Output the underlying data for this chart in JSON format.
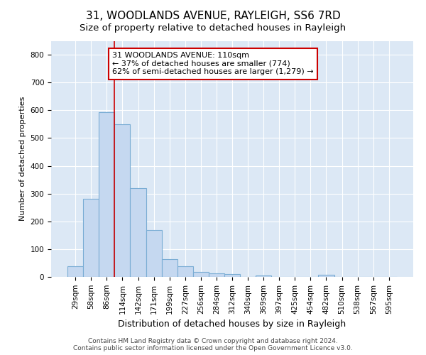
{
  "title": "31, WOODLANDS AVENUE, RAYLEIGH, SS6 7RD",
  "subtitle": "Size of property relative to detached houses in Rayleigh",
  "xlabel": "Distribution of detached houses by size in Rayleigh",
  "ylabel": "Number of detached properties",
  "categories": [
    "29sqm",
    "58sqm",
    "86sqm",
    "114sqm",
    "142sqm",
    "171sqm",
    "199sqm",
    "227sqm",
    "256sqm",
    "284sqm",
    "312sqm",
    "340sqm",
    "369sqm",
    "397sqm",
    "425sqm",
    "454sqm",
    "482sqm",
    "510sqm",
    "538sqm",
    "567sqm",
    "595sqm"
  ],
  "values": [
    38,
    280,
    593,
    550,
    320,
    170,
    65,
    38,
    18,
    12,
    10,
    0,
    5,
    0,
    0,
    0,
    8,
    0,
    0,
    0,
    0
  ],
  "bar_color": "#c5d8f0",
  "bar_edge_color": "#7aadd4",
  "vline_color": "#cc0000",
  "annotation_text": "31 WOODLANDS AVENUE: 110sqm\n← 37% of detached houses are smaller (774)\n62% of semi-detached houses are larger (1,279) →",
  "annotation_box_facecolor": "white",
  "annotation_box_edgecolor": "#cc0000",
  "ylim": [
    0,
    850
  ],
  "yticks": [
    0,
    100,
    200,
    300,
    400,
    500,
    600,
    700,
    800
  ],
  "background_color": "#dce8f5",
  "plot_bg_color": "#dce8f5",
  "footer": "Contains HM Land Registry data © Crown copyright and database right 2024.\nContains public sector information licensed under the Open Government Licence v3.0.",
  "title_fontsize": 11,
  "subtitle_fontsize": 9.5,
  "xlabel_fontsize": 9,
  "ylabel_fontsize": 8,
  "tick_fontsize": 7.5,
  "annotation_fontsize": 8,
  "footer_fontsize": 6.5,
  "vline_index": 3
}
